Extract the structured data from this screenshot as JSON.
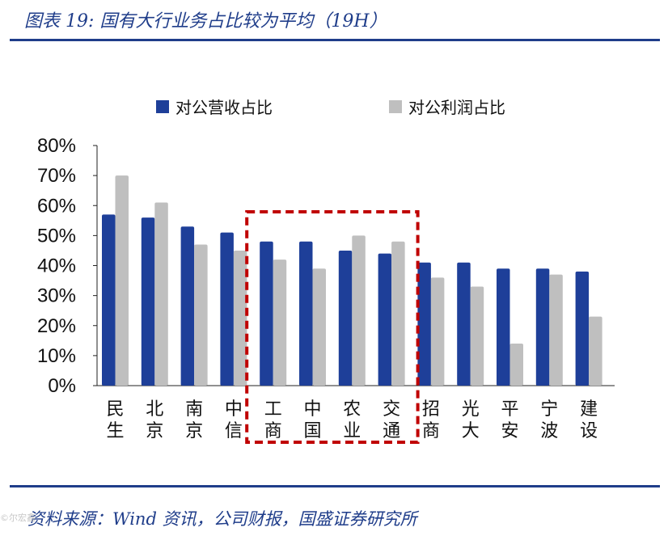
{
  "header": {
    "title": "图表 19: 国有大行业务占比较为平均（19H）"
  },
  "footer": {
    "source": "资料来源：Wind 资讯，公司财报，国盛证券研究所",
    "watermark": "©尔宏鑫"
  },
  "colors": {
    "revenue": "#1e3f99",
    "profit": "#bfbfbf",
    "highlight": "#c00000",
    "brand": "#1f3d8a"
  },
  "chart_data": {
    "type": "bar",
    "title": "",
    "xlabel": "",
    "ylabel": "",
    "ylim": [
      0,
      80
    ],
    "yticks": [
      "0%",
      "10%",
      "20%",
      "30%",
      "40%",
      "50%",
      "60%",
      "70%",
      "80%"
    ],
    "grid": false,
    "legend_position": "top",
    "categories": [
      "民生",
      "北京",
      "南京",
      "中信",
      "工商",
      "中国",
      "农业",
      "交通",
      "招商",
      "光大",
      "平安",
      "宁波",
      "建设"
    ],
    "series": [
      {
        "name": "对公营收占比",
        "color": "#1e3f99",
        "values": [
          57,
          56,
          53,
          51,
          48,
          48,
          45,
          44,
          41,
          41,
          39,
          39,
          38
        ]
      },
      {
        "name": "对公利润占比",
        "color": "#bfbfbf",
        "values": [
          70,
          61,
          47,
          45,
          42,
          39,
          50,
          48,
          36,
          33,
          14,
          37,
          23
        ]
      }
    ],
    "highlighted_categories": [
      "工商",
      "中国",
      "农业",
      "交通"
    ]
  }
}
